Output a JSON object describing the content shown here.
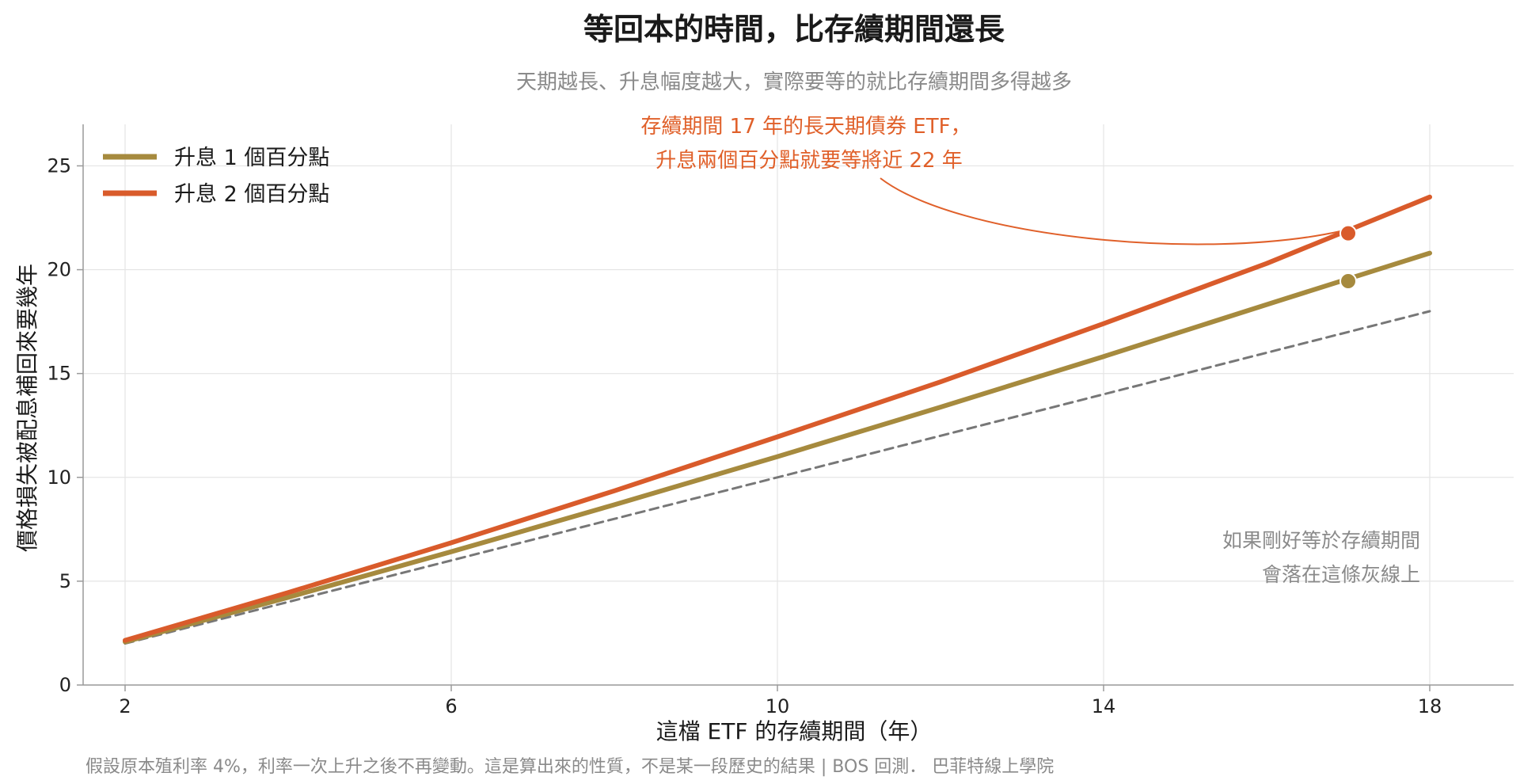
{
  "chart_data": {
    "type": "line",
    "title": "等回本的時間，比存續期間還長",
    "subtitle": "天期越長、升息幅度越大，實際要等的就比存續期間多得越多",
    "xlabel": "這檔 ETF 的存續期間（年）",
    "ylabel": "價格損失被配息補回來要幾年",
    "xlim": [
      2,
      18
    ],
    "ylim": [
      0,
      27
    ],
    "x_ticks": [
      "2",
      "6",
      "10",
      "14",
      "18"
    ],
    "y_ticks": [
      "0",
      "5",
      "10",
      "15",
      "20",
      "25"
    ],
    "grid": true,
    "legend_position": "top-left",
    "x": [
      2,
      4,
      6,
      8,
      10,
      12,
      14,
      16,
      18
    ],
    "series": [
      {
        "name": "升息 1 個百分點",
        "color": "#a68a3e",
        "values": [
          2.08,
          4.22,
          6.42,
          8.68,
          11.0,
          13.38,
          15.82,
          18.32,
          20.8
        ]
      },
      {
        "name": "升息 2 個百分點",
        "color": "#d95b2b",
        "values": [
          2.15,
          4.45,
          6.85,
          9.35,
          11.95,
          14.6,
          17.4,
          20.3,
          23.5
        ]
      },
      {
        "color": "#777777",
        "style": "dashed",
        "values": [
          2,
          4,
          6,
          8,
          10,
          12,
          14,
          16,
          18
        ]
      }
    ],
    "highlight_points": [
      {
        "series": 0,
        "x": 17,
        "y": 19.45,
        "color": "#a68a3e"
      },
      {
        "series": 1,
        "x": 17,
        "y": 21.75,
        "color": "#d95b2b"
      }
    ],
    "annotations": {
      "orange_line1": "存續期間 17 年的長天期債券 ETF，",
      "orange_line2": "升息兩個百分點就要等將近 22 年",
      "gray_line1": "如果剛好等於存續期間",
      "gray_line2": "會落在這條灰線上"
    },
    "footer": "假設原本殖利率 4%，利率一次上升之後不再變動。這是算出來的性質，不是某一段歷史的結果 | BOS 回測． 巴菲特線上學院"
  }
}
